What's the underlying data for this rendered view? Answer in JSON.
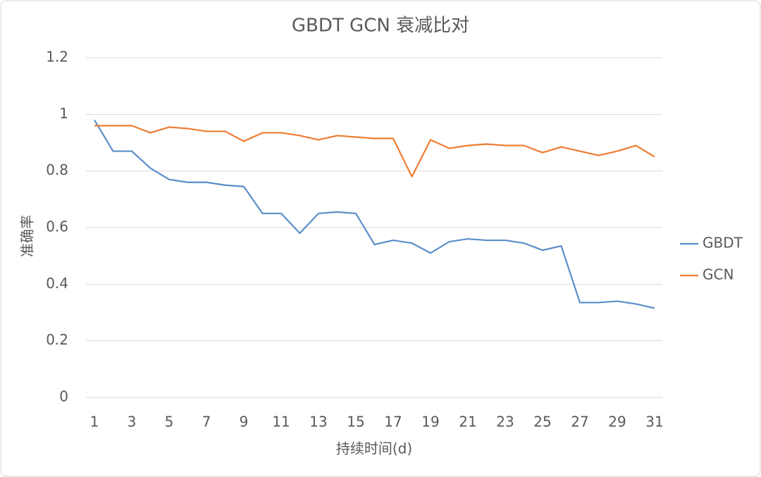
{
  "chart_data": {
    "type": "line",
    "title": "GBDT GCN 衰减比对",
    "x_label": "持续时间(d)",
    "y_label": "准确率",
    "x": [
      1,
      2,
      3,
      4,
      5,
      6,
      7,
      8,
      9,
      10,
      11,
      12,
      13,
      14,
      15,
      16,
      17,
      18,
      19,
      20,
      21,
      22,
      23,
      24,
      25,
      26,
      27,
      28,
      29,
      30,
      31
    ],
    "xlim": [
      1,
      31
    ],
    "xticks": [
      1,
      3,
      5,
      7,
      9,
      11,
      13,
      15,
      17,
      19,
      21,
      23,
      25,
      27,
      29,
      31
    ],
    "ylim": [
      0,
      1.2
    ],
    "yticks": [
      0,
      0.2,
      0.4,
      0.6,
      0.8,
      1,
      1.2
    ],
    "grid": true,
    "legend": "right",
    "series": [
      {
        "name": "GBDT",
        "color": "#5b8ec9",
        "values": [
          0.98,
          0.87,
          0.87,
          0.81,
          0.77,
          0.76,
          0.76,
          0.75,
          0.745,
          0.65,
          0.65,
          0.58,
          0.65,
          0.655,
          0.65,
          0.54,
          0.555,
          0.545,
          0.51,
          0.55,
          0.56,
          0.555,
          0.555,
          0.545,
          0.52,
          0.535,
          0.335,
          0.335,
          0.34,
          0.33,
          0.315
        ]
      },
      {
        "name": "GCN",
        "color": "#ed7d31",
        "values": [
          0.96,
          0.96,
          0.96,
          0.935,
          0.955,
          0.95,
          0.94,
          0.94,
          0.905,
          0.935,
          0.935,
          0.925,
          0.91,
          0.925,
          0.92,
          0.915,
          0.915,
          0.78,
          0.91,
          0.88,
          0.89,
          0.895,
          0.89,
          0.89,
          0.865,
          0.885,
          0.87,
          0.855,
          0.87,
          0.89,
          0.85
        ]
      }
    ]
  }
}
